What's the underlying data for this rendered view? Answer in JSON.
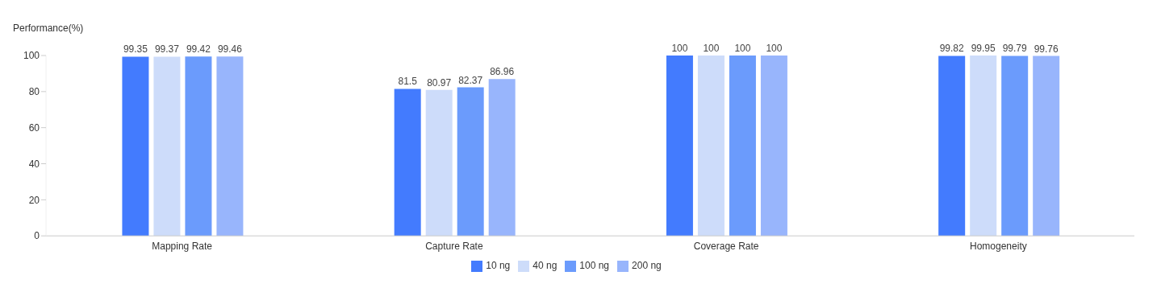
{
  "chart_data": {
    "type": "bar",
    "ylabel": "Performance(%)",
    "categories": [
      "Mapping Rate",
      "Capture Rate",
      "Coverage Rate",
      "Homogeneity"
    ],
    "series": [
      {
        "name": "10 ng",
        "color": "#437bfe",
        "values": [
          99.35,
          81.5,
          100,
          99.82
        ]
      },
      {
        "name": "40 ng",
        "color": "#cddcfa",
        "values": [
          99.37,
          80.97,
          100,
          99.95
        ]
      },
      {
        "name": "100 ng",
        "color": "#6b9bfc",
        "values": [
          99.42,
          82.37,
          100,
          99.79
        ]
      },
      {
        "name": "200 ng",
        "color": "#98b5fc",
        "values": [
          99.46,
          86.96,
          100,
          99.76
        ]
      }
    ],
    "ylim": [
      0,
      100
    ],
    "yticks": [
      0,
      20,
      40,
      60,
      80,
      100
    ],
    "grid": false,
    "legend": "bottom",
    "data_labels": true
  }
}
